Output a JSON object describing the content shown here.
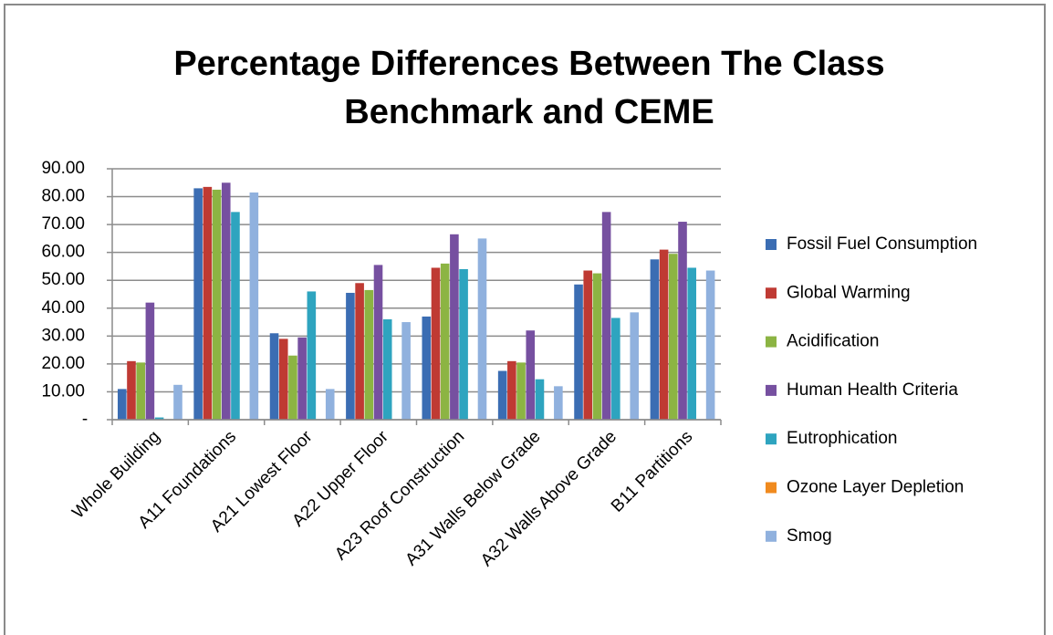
{
  "chart_data": {
    "type": "bar",
    "title": "Percentage Differences Between The Class Benchmark and CEME",
    "categories": [
      "Whole Building",
      "A11 Foundations",
      "A21 Lowest Floor",
      "A22 Upper Floor",
      "A23 Roof Construction",
      "A31 Walls Below Grade",
      "A32 Walls Above Grade",
      "B11 Partitions"
    ],
    "series": [
      {
        "name": "Fossil Fuel Consumption",
        "color": "#3b6db3",
        "values": [
          11,
          83,
          31,
          45.5,
          37,
          17.5,
          48.5,
          57.5
        ]
      },
      {
        "name": "Global Warming",
        "color": "#bf3a33",
        "values": [
          21,
          83.5,
          29,
          49,
          54.5,
          21,
          53.5,
          61
        ]
      },
      {
        "name": "Acidification",
        "color": "#8cb443",
        "values": [
          20.5,
          82.5,
          23,
          46.5,
          56,
          20.5,
          52.5,
          59.5
        ]
      },
      {
        "name": "Human Health Criteria",
        "color": "#7650a0",
        "values": [
          42,
          85,
          29.5,
          55.5,
          66.5,
          32,
          74.5,
          71
        ]
      },
      {
        "name": "Eutrophication",
        "color": "#2ea4bf",
        "values": [
          0.8,
          74.5,
          46,
          36,
          54,
          14.5,
          36.5,
          54.5
        ]
      },
      {
        "name": "Ozone Layer Depletion",
        "color": "#f08a1e",
        "values": [
          0,
          0,
          0,
          0,
          0,
          0,
          0,
          0
        ]
      },
      {
        "name": "Smog",
        "color": "#90b1de",
        "values": [
          12.5,
          81.5,
          11,
          35,
          65,
          12,
          38.5,
          53.5
        ]
      }
    ],
    "ylim": [
      0,
      90
    ],
    "yticks": [
      {
        "value": 0,
        "label": "-"
      },
      {
        "value": 10,
        "label": "10.00"
      },
      {
        "value": 20,
        "label": "20.00"
      },
      {
        "value": 30,
        "label": "30.00"
      },
      {
        "value": 40,
        "label": "40.00"
      },
      {
        "value": 50,
        "label": "50.00"
      },
      {
        "value": 60,
        "label": "60.00"
      },
      {
        "value": 70,
        "label": "70.00"
      },
      {
        "value": 80,
        "label": "80.00"
      },
      {
        "value": 90,
        "label": "90.00"
      }
    ],
    "grid": true,
    "legend": "right"
  }
}
